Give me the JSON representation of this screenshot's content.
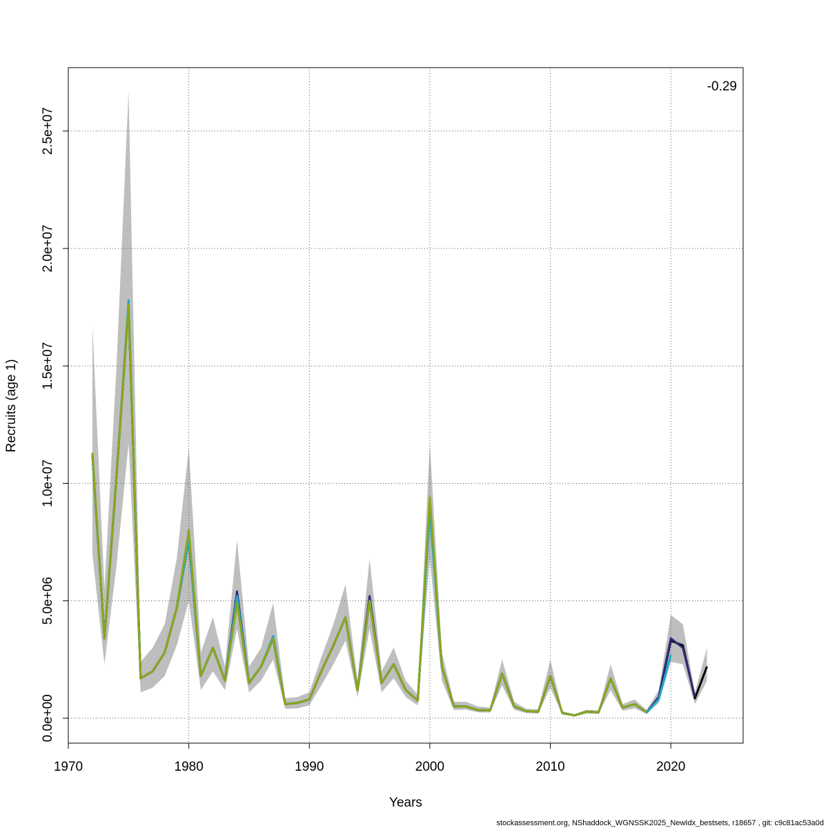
{
  "chart_data": {
    "type": "line",
    "xlabel": "Years",
    "ylabel": "Recruits (age 1)",
    "annotation": "-0.29",
    "footer": "stockassessment.org, NShaddock_WGNSSK2025_NewIdx_bestsets, r18657 , git: c9c81ac53a0d",
    "x": [
      1972,
      1973,
      1974,
      1975,
      1976,
      1977,
      1978,
      1979,
      1980,
      1981,
      1982,
      1983,
      1984,
      1985,
      1986,
      1987,
      1988,
      1989,
      1990,
      1991,
      1992,
      1993,
      1994,
      1995,
      1996,
      1997,
      1998,
      1999,
      2000,
      2001,
      2002,
      2003,
      2004,
      2005,
      2006,
      2007,
      2008,
      2009,
      2010,
      2011,
      2012,
      2013,
      2014,
      2015,
      2016,
      2017,
      2018,
      2019,
      2020,
      2021,
      2022,
      2023
    ],
    "band": {
      "color": "#bebebe",
      "upper": [
        16700000.0,
        5500000.0,
        15000000.0,
        26700000.0,
        2400000.0,
        3000000.0,
        4000000.0,
        6800000.0,
        11500000.0,
        2800000.0,
        4300000.0,
        2200000.0,
        7600000.0,
        2200000.0,
        3000000.0,
        4900000.0,
        850000.0,
        900000.0,
        1100000.0,
        2600000.0,
        4000000.0,
        5700000.0,
        1600000.0,
        6800000.0,
        2000000.0,
        3000000.0,
        1600000.0,
        1000000.0,
        11700000.0,
        2800000.0,
        700000.0,
        700000.0,
        500000.0,
        450000.0,
        2500000.0,
        700000.0,
        400000.0,
        380000.0,
        2500000.0,
        300000.0,
        170000.0,
        360000.0,
        330000.0,
        2300000.0,
        600000.0,
        800000.0,
        350000.0,
        1200000.0,
        4400000.0,
        4000000.0,
        1100000.0,
        3000000.0
      ],
      "lower": [
        7000000.0,
        2300000.0,
        6500000.0,
        11700000.0,
        1100000.0,
        1300000.0,
        1800000.0,
        3100000.0,
        5000000.0,
        1200000.0,
        2000000.0,
        1200000.0,
        3800000.0,
        1100000.0,
        1600000.0,
        2500000.0,
        400000.0,
        420000.0,
        550000.0,
        1400000.0,
        2300000.0,
        3300000.0,
        900000.0,
        3800000.0,
        1100000.0,
        1700000.0,
        900000.0,
        550000.0,
        6800000.0,
        1600000.0,
        350000.0,
        370000.0,
        250000.0,
        240000.0,
        1400000.0,
        360000.0,
        220000.0,
        200000.0,
        1300000.0,
        160000.0,
        80000.0,
        200000.0,
        180000.0,
        1200000.0,
        320000.0,
        420000.0,
        180000.0,
        650000.0,
        2400000.0,
        2300000.0,
        600000.0,
        1600000.0
      ]
    },
    "series": [
      {
        "color": "#000000",
        "values": [
          11200000.0,
          3400000.0,
          10300000.0,
          17600000.0,
          1700000.0,
          2000000.0,
          2800000.0,
          4700000.0,
          7600000.0,
          1800000.0,
          3000000.0,
          1600000.0,
          5000000.0,
          1500000.0,
          2200000.0,
          3400000.0,
          600000.0,
          650000.0,
          800000.0,
          2000000.0,
          3100000.0,
          4300000.0,
          1200000.0,
          5000000.0,
          1500000.0,
          2300000.0,
          1200000.0,
          750000.0,
          9000000.0,
          2200000.0,
          500000.0,
          500000.0,
          350000.0,
          330000.0,
          1900000.0,
          500000.0,
          300000.0,
          280000.0,
          1800000.0,
          220000.0,
          120000.0,
          280000.0,
          250000.0,
          1700000.0,
          450000.0,
          600000.0,
          250000.0,
          900000.0,
          3300000.0,
          3100000.0,
          850000.0,
          2200000.0
        ]
      },
      {
        "color": "#2c2a7a",
        "values": [
          11200000.0,
          3400000.0,
          10300000.0,
          17600000.0,
          1700000.0,
          2000000.0,
          2800000.0,
          4700000.0,
          7600000.0,
          1800000.0,
          3000000.0,
          1600000.0,
          5400000.0,
          1500000.0,
          2200000.0,
          3400000.0,
          600000.0,
          650000.0,
          800000.0,
          2000000.0,
          3100000.0,
          4300000.0,
          1200000.0,
          5200000.0,
          1500000.0,
          2300000.0,
          1200000.0,
          750000.0,
          9000000.0,
          2200000.0,
          500000.0,
          500000.0,
          350000.0,
          330000.0,
          1900000.0,
          500000.0,
          300000.0,
          280000.0,
          1800000.0,
          220000.0,
          120000.0,
          280000.0,
          250000.0,
          1700000.0,
          450000.0,
          600000.0,
          250000.0,
          900000.0,
          3400000.0,
          3000000.0,
          900000.0,
          null
        ]
      },
      {
        "color": "#22a8c8",
        "values": [
          11200000.0,
          3400000.0,
          10300000.0,
          17800000.0,
          1700000.0,
          2000000.0,
          2800000.0,
          4700000.0,
          7600000.0,
          1800000.0,
          3000000.0,
          1600000.0,
          5200000.0,
          1500000.0,
          2200000.0,
          3500000.0,
          600000.0,
          650000.0,
          800000.0,
          2000000.0,
          3100000.0,
          4300000.0,
          1200000.0,
          5000000.0,
          1500000.0,
          2300000.0,
          1200000.0,
          750000.0,
          8800000.0,
          2200000.0,
          500000.0,
          500000.0,
          350000.0,
          330000.0,
          1900000.0,
          500000.0,
          300000.0,
          280000.0,
          1800000.0,
          220000.0,
          120000.0,
          280000.0,
          250000.0,
          1700000.0,
          450000.0,
          600000.0,
          250000.0,
          800000.0,
          2700000.0,
          null,
          null,
          null
        ]
      },
      {
        "color": "#8aa61c",
        "values": [
          11300000.0,
          3400000.0,
          10300000.0,
          17600000.0,
          1700000.0,
          2000000.0,
          2800000.0,
          4700000.0,
          8000000.0,
          1800000.0,
          3000000.0,
          1600000.0,
          4900000.0,
          1500000.0,
          2200000.0,
          3400000.0,
          600000.0,
          650000.0,
          800000.0,
          2000000.0,
          3100000.0,
          4300000.0,
          1200000.0,
          5000000.0,
          1500000.0,
          2300000.0,
          1200000.0,
          750000.0,
          9400000.0,
          2200000.0,
          500000.0,
          500000.0,
          350000.0,
          330000.0,
          1900000.0,
          500000.0,
          300000.0,
          280000.0,
          1800000.0,
          220000.0,
          120000.0,
          280000.0,
          250000.0,
          1700000.0,
          450000.0,
          600000.0,
          250000.0,
          null,
          null,
          null,
          null,
          null
        ]
      }
    ],
    "xlim": [
      1970,
      2026
    ],
    "ylim": [
      -1060000.0,
      27700000.0
    ],
    "xticks": [
      1970,
      1980,
      1990,
      2000,
      2010,
      2020
    ],
    "yticks": [
      {
        "value": 0,
        "label": "0.0e+00"
      },
      {
        "value": 5000000,
        "label": "5.0e+06"
      },
      {
        "value": 10000000,
        "label": "1.0e+07"
      },
      {
        "value": 15000000,
        "label": "1.5e+07"
      },
      {
        "value": 20000000,
        "label": "2.0e+07"
      },
      {
        "value": 25000000,
        "label": "2.5e+07"
      }
    ],
    "grid": true
  }
}
